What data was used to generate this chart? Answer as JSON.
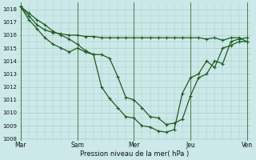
{
  "bg_color": "#cce8e8",
  "grid_color": "#aacccc",
  "line_color": "#1e5c1e",
  "xlabel": "Pression niveau de la mer( hPa )",
  "ylim": [
    1008,
    1018.5
  ],
  "yticks": [
    1008,
    1009,
    1010,
    1011,
    1012,
    1013,
    1014,
    1015,
    1016,
    1017,
    1018
  ],
  "xtick_labels": [
    "Mar",
    "Sam",
    "Mer",
    "Jeu",
    "Ven"
  ],
  "xtick_positions": [
    0,
    7,
    14,
    21,
    28
  ],
  "vline_positions": [
    0,
    7,
    14,
    21,
    28
  ],
  "line1_x": [
    0,
    1,
    2,
    3,
    4,
    5,
    6,
    7,
    8,
    9,
    10,
    11,
    12,
    13,
    14,
    15,
    16,
    17,
    18,
    19,
    20,
    21,
    22,
    23,
    24,
    25,
    26,
    27,
    28
  ],
  "line1_y": [
    1018.2,
    1017.7,
    1017.2,
    1016.8,
    1016.3,
    1016.0,
    1015.7,
    1015.3,
    1014.8,
    1014.5,
    1014.5,
    1014.2,
    1012.8,
    1011.2,
    1011.0,
    1010.4,
    1009.7,
    1009.6,
    1009.1,
    1009.2,
    1009.5,
    1011.3,
    1012.7,
    1013.0,
    1014.0,
    1013.8,
    1015.5,
    1015.7,
    1015.8
  ],
  "line2_x": [
    0,
    1,
    2,
    3,
    4,
    5,
    6,
    7,
    8,
    9,
    10,
    11,
    12,
    13,
    14,
    15,
    16,
    17,
    18,
    19,
    20,
    21,
    22,
    23,
    24,
    25,
    26,
    27,
    28
  ],
  "line2_y": [
    1018.2,
    1017.2,
    1016.5,
    1015.8,
    1015.3,
    1015.0,
    1014.7,
    1015.0,
    1014.7,
    1014.5,
    1012.0,
    1011.1,
    1010.4,
    1009.7,
    1009.6,
    1009.0,
    1008.9,
    1008.6,
    1008.5,
    1008.7,
    1011.5,
    1012.7,
    1013.0,
    1014.0,
    1013.5,
    1015.0,
    1015.2,
    1015.5,
    1015.5
  ],
  "line3_x": [
    0,
    1,
    2,
    3,
    4,
    5,
    6,
    7,
    8,
    9,
    10,
    11,
    12,
    13,
    14,
    15,
    16,
    17,
    18,
    19,
    20,
    21,
    22,
    23,
    24,
    25,
    26,
    27,
    28
  ],
  "line3_y": [
    1018.2,
    1017.5,
    1016.8,
    1016.4,
    1016.2,
    1016.1,
    1016.0,
    1016.0,
    1015.9,
    1015.9,
    1015.8,
    1015.8,
    1015.8,
    1015.8,
    1015.8,
    1015.8,
    1015.8,
    1015.8,
    1015.8,
    1015.8,
    1015.8,
    1015.8,
    1015.8,
    1015.7,
    1015.8,
    1015.6,
    1015.8,
    1015.8,
    1015.5
  ]
}
